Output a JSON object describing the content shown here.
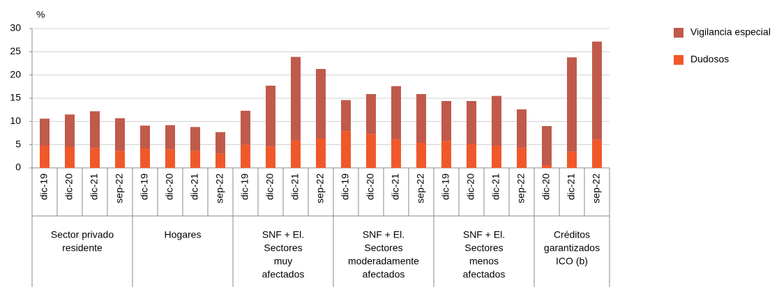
{
  "chart_data": {
    "type": "stacked_bar",
    "y_unit": "%",
    "ylim": [
      0,
      30
    ],
    "yticks": [
      0,
      5,
      10,
      15,
      20,
      25,
      30
    ],
    "groups": [
      {
        "label": [
          "Sector privado",
          "residente"
        ],
        "categories": [
          "dic-19",
          "dic-20",
          "dic-21",
          "sep-22"
        ]
      },
      {
        "label": [
          "Hogares"
        ],
        "categories": [
          "dic-19",
          "dic-20",
          "dic-21",
          "sep-22"
        ]
      },
      {
        "label": [
          "SNF + El.",
          "Sectores",
          "muy",
          "afectados"
        ],
        "categories": [
          "dic-19",
          "dic-20",
          "dic-21",
          "sep-22"
        ]
      },
      {
        "label": [
          "SNF + El.",
          "Sectores",
          "moderadamente",
          "afectados"
        ],
        "categories": [
          "dic-19",
          "dic-20",
          "dic-21",
          "sep-22"
        ]
      },
      {
        "label": [
          "SNF + El.",
          "Sectores",
          "menos",
          "afectados"
        ],
        "categories": [
          "dic-19",
          "dic-20",
          "dic-21",
          "sep-22"
        ]
      },
      {
        "label": [
          "Créditos",
          "garantizados",
          "ICO (b)"
        ],
        "categories": [
          "dic-20",
          "dic-21",
          "sep-22"
        ]
      }
    ],
    "series": [
      {
        "name": "Vigilancia especial",
        "color": "#c05a4b",
        "values": [
          5.8,
          7.0,
          7.9,
          7.0,
          4.9,
          5.2,
          5.1,
          4.6,
          7.3,
          13.1,
          18.0,
          15.0,
          6.7,
          8.6,
          11.5,
          10.5,
          8.6,
          9.3,
          10.7,
          8.3,
          8.4,
          20.3,
          21.1
        ]
      },
      {
        "name": "Dudosos",
        "color": "#f0582a",
        "values": [
          4.8,
          4.5,
          4.3,
          3.7,
          4.2,
          4.0,
          3.7,
          3.1,
          5.0,
          4.6,
          5.9,
          6.3,
          7.9,
          7.3,
          6.1,
          5.4,
          5.8,
          5.1,
          4.8,
          4.3,
          0.6,
          3.5,
          6.1
        ]
      }
    ]
  }
}
